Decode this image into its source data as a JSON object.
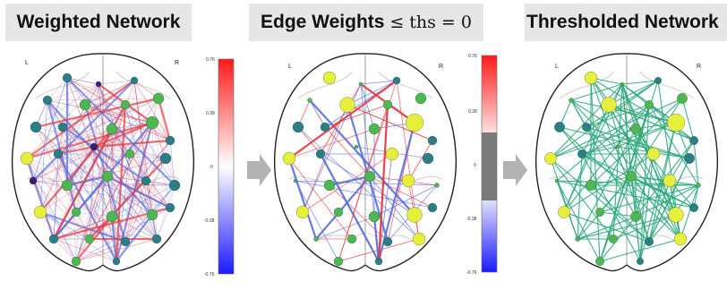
{
  "panels": {
    "weighted": {
      "title": "Weighted Network",
      "left_label": "L",
      "right_label": "R"
    },
    "edge_weights": {
      "title_text": "Edge Weights",
      "title_math": "≤ ths = 0",
      "left_label": "L",
      "right_label": "R"
    },
    "thresholded": {
      "title": "Thresholded Network",
      "left_label": "L",
      "right_label": "R"
    }
  },
  "colorbar_1": {
    "ticks": [
      "0.76",
      "0.38",
      "0",
      "-0.38",
      "-0.76"
    ]
  },
  "colorbar_2": {
    "ticks": [
      "0.76",
      "0.38",
      "0",
      "-0.38",
      "-0.76"
    ]
  },
  "colors": {
    "positive_edge": "#e8383d",
    "negative_edge": "#5b6ee0",
    "threshold_band": "#7a7a7a",
    "thresholded_edge": "#2aa87a",
    "node_high": "#e6f03a",
    "node_mid": "#4cb852",
    "node_low": "#2a7f86",
    "node_min": "#3b1e6e",
    "arrow": "#b3b3b3"
  }
}
